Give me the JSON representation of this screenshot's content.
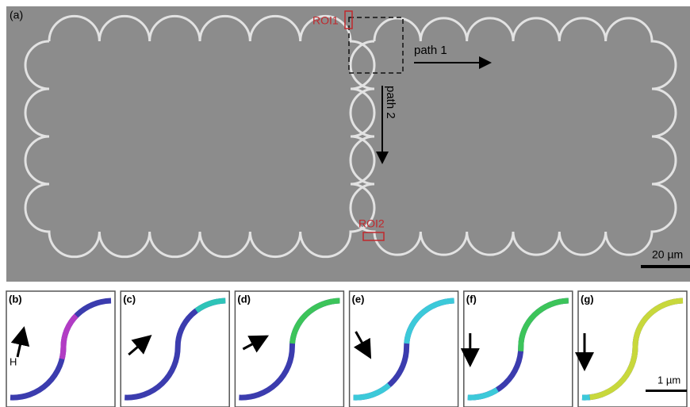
{
  "panel_a": {
    "label": "(a)",
    "roi1": "ROI1",
    "roi2": "ROI2",
    "path1": "path 1",
    "path2": "path 2",
    "scale_bar": "20 µm"
  },
  "panels": [
    {
      "label": "(b)",
      "field_label": "H"
    },
    {
      "label": "(c)"
    },
    {
      "label": "(d)"
    },
    {
      "label": "(e)"
    },
    {
      "label": "(f)"
    },
    {
      "label": "(g)",
      "scale_bar": "1 µm"
    }
  ]
}
